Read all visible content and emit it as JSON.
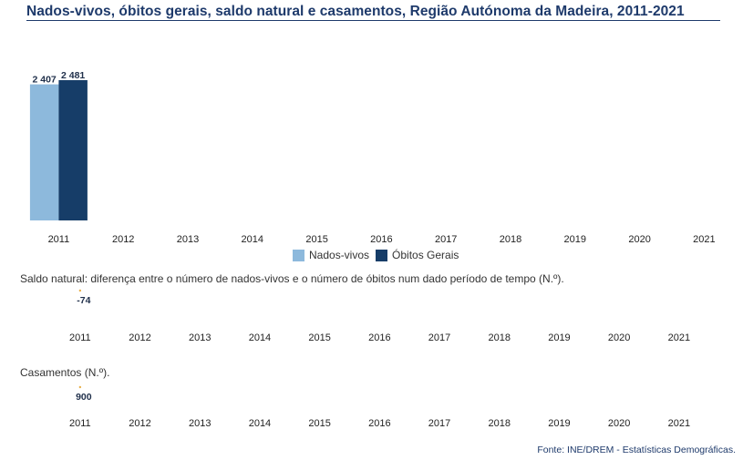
{
  "title": "Nados-vivos, óbitos gerais, saldo natural e casamentos, Região Autónoma da Madeira, 2011-2021",
  "colors": {
    "nados": "#8db9dc",
    "obitos": "#163d68",
    "title": "#1e3a6b",
    "marker": "#e8b04a"
  },
  "chart_data": [
    {
      "type": "bar",
      "categories": [
        "2011",
        "2012",
        "2013",
        "2014",
        "2015",
        "2016",
        "2017",
        "2018",
        "2019",
        "2020",
        "2021"
      ],
      "series": [
        {
          "name": "Nados-vivos",
          "values": [
            2407,
            null,
            null,
            null,
            null,
            null,
            null,
            null,
            null,
            null,
            null
          ],
          "labels": [
            "2 407"
          ]
        },
        {
          "name": "Óbitos Gerais",
          "values": [
            2481,
            null,
            null,
            null,
            null,
            null,
            null,
            null,
            null,
            null,
            null
          ],
          "labels": [
            "2 481"
          ]
        }
      ],
      "ylim": [
        0,
        2481
      ],
      "legend": "bottom-center"
    },
    {
      "type": "line",
      "title": "Saldo natural: diferença entre o número de nados-vivos e o número de óbitos num dado período de tempo (N.º).",
      "categories": [
        "2011",
        "2012",
        "2013",
        "2014",
        "2015",
        "2016",
        "2017",
        "2018",
        "2019",
        "2020",
        "2021"
      ],
      "values": [
        -74,
        null,
        null,
        null,
        null,
        null,
        null,
        null,
        null,
        null,
        null
      ],
      "labels": [
        "-74"
      ]
    },
    {
      "type": "line",
      "title": "Casamentos (N.º).",
      "categories": [
        "2011",
        "2012",
        "2013",
        "2014",
        "2015",
        "2016",
        "2017",
        "2018",
        "2019",
        "2020",
        "2021"
      ],
      "values": [
        900,
        null,
        null,
        null,
        null,
        null,
        null,
        null,
        null,
        null,
        null
      ],
      "labels": [
        "900"
      ]
    }
  ],
  "legend": {
    "nados_label": "Nados-vivos",
    "obitos_label": "Óbitos Gerais"
  },
  "saldo_label": "Saldo natural: diferença entre o número de nados-vivos e o número de óbitos num dado período de tempo (N.º).",
  "casamentos_label": "Casamentos (N.º).",
  "source": "Fonte: INE/DREM - Estatísticas Demográficas."
}
